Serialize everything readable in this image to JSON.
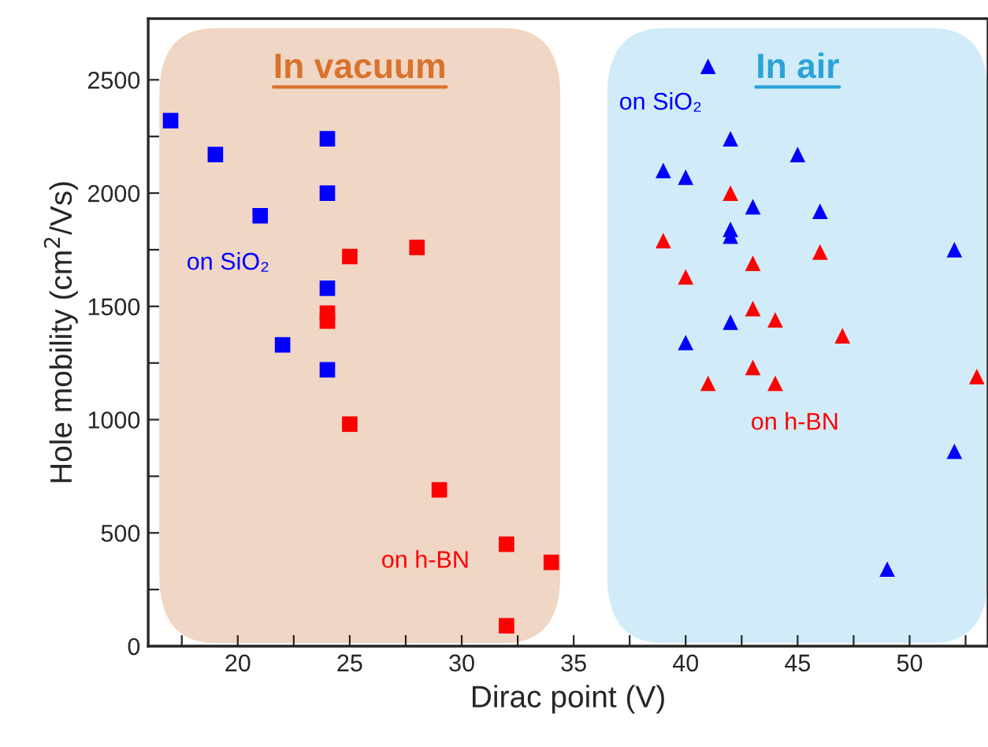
{
  "chart_data": {
    "type": "scatter",
    "xlabel": "Dirac point (V)",
    "ylabel": "Hole mobility (cm$^{2}$/Vs)",
    "xlim": [
      16,
      53.5
    ],
    "ylim": [
      0,
      2770
    ],
    "xticks": [
      {
        "value": 17.5,
        "label": null
      },
      20,
      {
        "value": 22.5,
        "label": null
      },
      25,
      {
        "value": 27.5,
        "label": null
      },
      30,
      {
        "value": 32.5,
        "label": null
      },
      35,
      {
        "value": 37.5,
        "label": null
      },
      40,
      {
        "value": 42.5,
        "label": null
      },
      45,
      {
        "value": 47.5,
        "label": null
      },
      50,
      {
        "value": 52.5,
        "label": null
      }
    ],
    "yticks": [
      0,
      {
        "value": 250,
        "label": null
      },
      500,
      {
        "value": 750,
        "label": null
      },
      1000,
      {
        "value": 1250,
        "label": null
      },
      1500,
      {
        "value": 1750,
        "label": null
      },
      2000,
      {
        "value": 2250,
        "label": null
      },
      2500
    ],
    "grid": false,
    "legend": false,
    "bands": [
      {
        "axis": "x",
        "from": 16.5,
        "to": 34.4,
        "label": "In vacuum",
        "color": "#f0d6c4"
      },
      {
        "axis": "x",
        "from": 36.5,
        "to": 53.5,
        "label": "In air",
        "color": "#d1ecf8"
      }
    ],
    "series": [
      {
        "name": "on SiO₂",
        "color": "#0000ff",
        "marker": "square",
        "x": [
          17,
          19,
          21,
          22,
          24,
          24,
          24,
          24
        ],
        "values": [
          2320,
          2170,
          1900,
          1330,
          2240,
          2000,
          1580,
          1220
        ]
      },
      {
        "name": "on h-BN",
        "color": "#ff0000",
        "marker": "square",
        "x": [
          25,
          28,
          24,
          24,
          25,
          29,
          32,
          34,
          32
        ],
        "values": [
          1720,
          1760,
          1470,
          1435,
          980,
          690,
          450,
          370,
          90
        ]
      },
      {
        "name": "on SiO₂",
        "color": "#0000ff",
        "marker": "triangle",
        "x": [
          41,
          42,
          45,
          39,
          40,
          43,
          46,
          42,
          42,
          52,
          42,
          40,
          52,
          49
        ],
        "values": [
          2560,
          2240,
          2170,
          2100,
          2070,
          1940,
          1920,
          1840,
          1810,
          1750,
          1430,
          1340,
          860,
          340
        ]
      },
      {
        "name": "on h-BN",
        "color": "#ff0000",
        "marker": "triangle",
        "x": [
          42,
          39,
          46,
          43,
          40,
          43,
          44,
          47,
          43,
          41,
          44,
          53
        ],
        "values": [
          2000,
          1790,
          1740,
          1690,
          1630,
          1490,
          1440,
          1370,
          1230,
          1160,
          1160,
          1190
        ]
      }
    ]
  }
}
